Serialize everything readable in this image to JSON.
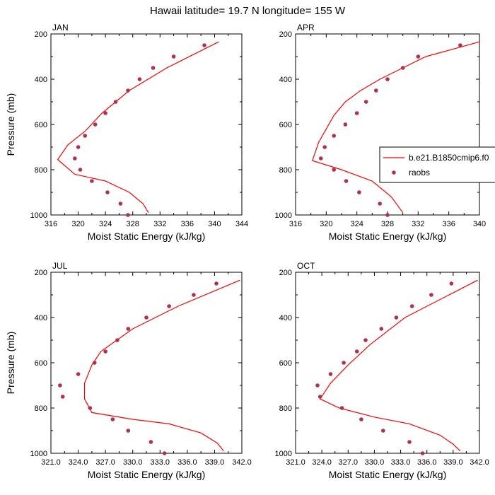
{
  "title": "Hawaii  latitude= 19.7 N longitude= 155 W",
  "legend": {
    "entries": [
      {
        "label": "b.e21.B1850cmip6.f0",
        "style": "line",
        "color": "#ff0000"
      },
      {
        "label": "raobs",
        "style": "dot",
        "color": "#b03050"
      }
    ]
  },
  "colors": {
    "model_line": "#ff0000",
    "obs_marker": "#b03050"
  },
  "chart_data": [
    {
      "type": "line",
      "label": "JAN",
      "xlabel": "Moist Static Energy (kJ/kg)",
      "ylabel": "Pressure (mb)",
      "xlim": [
        316,
        344
      ],
      "ylim": [
        200,
        1000
      ],
      "y_reversed": true,
      "xticks": [
        316,
        320,
        324,
        328,
        332,
        336,
        340,
        344
      ],
      "xtick_labels": [
        "316",
        "320",
        "324",
        "328",
        "332",
        "336",
        "340",
        "344"
      ],
      "yticks": [
        200,
        400,
        600,
        800,
        1000
      ],
      "series": [
        {
          "name": "b.e21.B1850cmip6.f0",
          "style": "line",
          "points": [
            [
              340.6,
              235
            ],
            [
              333.0,
              350
            ],
            [
              327.5,
              450
            ],
            [
              323.5,
              550
            ],
            [
              321.0,
              630
            ],
            [
              318.5,
              690
            ],
            [
              317.0,
              755
            ],
            [
              319.5,
              820
            ],
            [
              324.0,
              850
            ],
            [
              327.5,
              900
            ],
            [
              329.5,
              950
            ],
            [
              330.3,
              990
            ]
          ]
        },
        {
          "name": "raobs",
          "style": "scatter",
          "points": [
            [
              338.5,
              250
            ],
            [
              334.0,
              300
            ],
            [
              331.0,
              350
            ],
            [
              329.0,
              400
            ],
            [
              327.3,
              450
            ],
            [
              325.5,
              500
            ],
            [
              324.0,
              550
            ],
            [
              322.5,
              600
            ],
            [
              321.0,
              650
            ],
            [
              320.0,
              700
            ],
            [
              319.5,
              750
            ],
            [
              320.3,
              800
            ],
            [
              322.0,
              850
            ],
            [
              324.3,
              900
            ],
            [
              326.2,
              950
            ],
            [
              327.3,
              1000
            ]
          ]
        }
      ]
    },
    {
      "type": "line",
      "label": "APR",
      "xlabel": "Moist Static Energy (kJ/kg)",
      "ylabel": "",
      "xlim": [
        316,
        340
      ],
      "ylim": [
        200,
        1000
      ],
      "y_reversed": true,
      "xticks": [
        316,
        320,
        324,
        328,
        332,
        336,
        340
      ],
      "xtick_labels": [
        "316",
        "320",
        "324",
        "328",
        "332",
        "336",
        "340"
      ],
      "yticks": [
        200,
        400,
        600,
        800,
        1000
      ],
      "series": [
        {
          "name": "b.e21.B1850cmip6.f0",
          "style": "line",
          "points": [
            [
              340.0,
              235
            ],
            [
              333.0,
              300
            ],
            [
              330.0,
              350
            ],
            [
              327.0,
              400
            ],
            [
              324.5,
              450
            ],
            [
              322.5,
              500
            ],
            [
              321.0,
              560
            ],
            [
              320.0,
              620
            ],
            [
              319.0,
              680
            ],
            [
              318.2,
              760
            ],
            [
              322.0,
              800
            ],
            [
              326.0,
              850
            ],
            [
              328.5,
              920
            ],
            [
              330.0,
              990
            ]
          ]
        },
        {
          "name": "raobs",
          "style": "scatter",
          "points": [
            [
              337.5,
              250
            ],
            [
              332.0,
              300
            ],
            [
              330.0,
              350
            ],
            [
              328.0,
              400
            ],
            [
              326.5,
              450
            ],
            [
              325.2,
              500
            ],
            [
              324.0,
              550
            ],
            [
              322.5,
              600
            ],
            [
              321.0,
              650
            ],
            [
              319.8,
              700
            ],
            [
              319.3,
              750
            ],
            [
              321.0,
              800
            ],
            [
              322.6,
              850
            ],
            [
              324.3,
              900
            ],
            [
              327.0,
              950
            ],
            [
              328.0,
              1000
            ]
          ]
        }
      ]
    },
    {
      "type": "line",
      "label": "JUL",
      "xlabel": "Moist Static Energy (kJ/kg)",
      "ylabel": "Pressure (mb)",
      "xlim": [
        321,
        342
      ],
      "ylim": [
        200,
        1000
      ],
      "y_reversed": true,
      "xticks": [
        321,
        324,
        327,
        330,
        333,
        336,
        339,
        342
      ],
      "xtick_labels": [
        "321.0",
        "324.0",
        "327.0",
        "330.0",
        "333.0",
        "336.0",
        "339.0",
        "342.0"
      ],
      "yticks": [
        200,
        400,
        600,
        800,
        1000
      ],
      "series": [
        {
          "name": "b.e21.B1850cmip6.f0",
          "style": "line",
          "points": [
            [
              341.8,
              235
            ],
            [
              335.0,
              350
            ],
            [
              330.0,
              450
            ],
            [
              326.5,
              550
            ],
            [
              325.5,
              610
            ],
            [
              324.7,
              690
            ],
            [
              324.7,
              760
            ],
            [
              325.5,
              820
            ],
            [
              330.0,
              850
            ],
            [
              334.0,
              870
            ],
            [
              337.5,
              910
            ],
            [
              339.3,
              955
            ],
            [
              340.0,
              990
            ]
          ]
        },
        {
          "name": "raobs",
          "style": "scatter",
          "points": [
            [
              339.2,
              250
            ],
            [
              336.7,
              300
            ],
            [
              334.0,
              350
            ],
            [
              331.5,
              400
            ],
            [
              329.5,
              450
            ],
            [
              328.3,
              500
            ],
            [
              327.0,
              550
            ],
            [
              325.8,
              600
            ],
            [
              324.0,
              650
            ],
            [
              322.0,
              700
            ],
            [
              322.3,
              750
            ],
            [
              325.3,
              800
            ],
            [
              327.8,
              850
            ],
            [
              329.5,
              900
            ],
            [
              332.0,
              950
            ],
            [
              333.5,
              1000
            ]
          ]
        }
      ]
    },
    {
      "type": "line",
      "label": "OCT",
      "xlabel": "Moist Static Energy (kJ/kg)",
      "ylabel": "",
      "xlim": [
        321,
        342
      ],
      "ylim": [
        200,
        1000
      ],
      "y_reversed": true,
      "xticks": [
        321,
        324,
        327,
        330,
        333,
        336,
        339,
        342
      ],
      "xtick_labels": [
        "321.0",
        "324.0",
        "327.0",
        "330.0",
        "333.0",
        "336.0",
        "339.0",
        "342.0"
      ],
      "yticks": [
        200,
        400,
        600,
        800,
        1000
      ],
      "series": [
        {
          "name": "b.e21.B1850cmip6.f0",
          "style": "line",
          "points": [
            [
              341.8,
              235
            ],
            [
              333.5,
              400
            ],
            [
              329.5,
              520
            ],
            [
              327.0,
              610
            ],
            [
              325.0,
              690
            ],
            [
              323.8,
              760
            ],
            [
              326.0,
              800
            ],
            [
              330.0,
              840
            ],
            [
              334.0,
              870
            ],
            [
              337.5,
              920
            ],
            [
              339.0,
              960
            ],
            [
              339.8,
              990
            ]
          ]
        },
        {
          "name": "raobs",
          "style": "scatter",
          "points": [
            [
              338.8,
              250
            ],
            [
              336.5,
              300
            ],
            [
              334.3,
              350
            ],
            [
              332.5,
              400
            ],
            [
              330.8,
              450
            ],
            [
              329.0,
              500
            ],
            [
              328.0,
              550
            ],
            [
              326.5,
              600
            ],
            [
              325.0,
              650
            ],
            [
              323.5,
              700
            ],
            [
              323.8,
              750
            ],
            [
              326.3,
              800
            ],
            [
              328.5,
              850
            ],
            [
              331.0,
              900
            ],
            [
              334.0,
              950
            ],
            [
              335.5,
              1000
            ]
          ]
        }
      ]
    }
  ]
}
